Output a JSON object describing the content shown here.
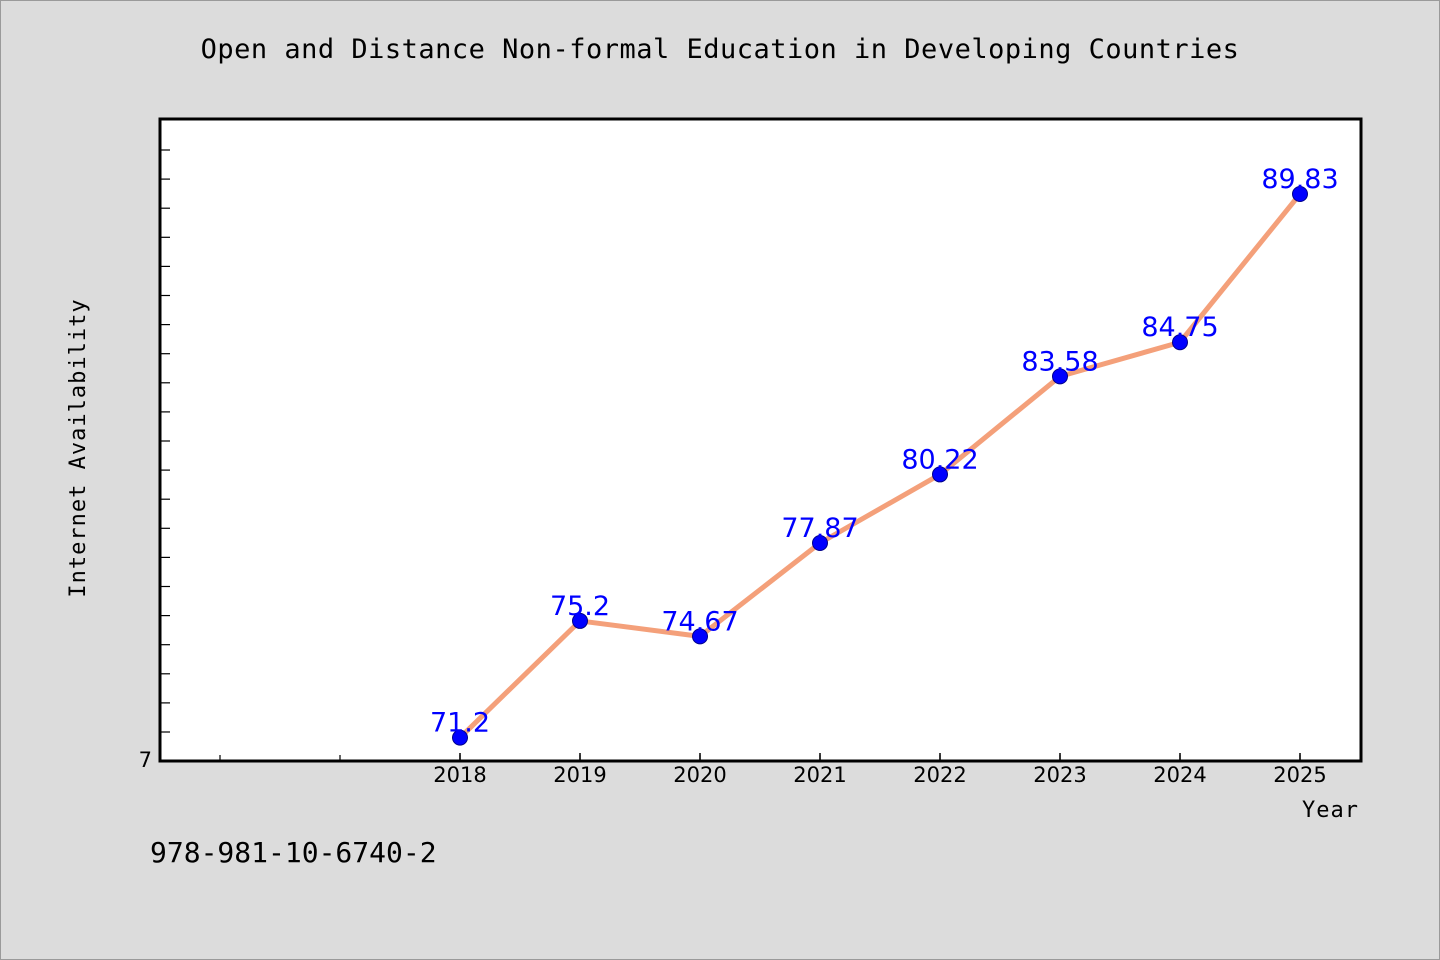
{
  "page": {
    "title": "Open and Distance Non-formal Education in Developing Countries",
    "footer_code": "978-981-10-6740-2"
  },
  "chart_data": {
    "type": "line",
    "title": "Open and Distance Non-formal Education in Developing Countries",
    "xlabel": "Year",
    "ylabel": "Internet Availability",
    "categories": [
      "2018",
      "2019",
      "2020",
      "2021",
      "2022",
      "2023",
      "2024",
      "2025"
    ],
    "series": [
      {
        "values": [
          71.2,
          75.2,
          74.67,
          77.87,
          80.22,
          83.58,
          84.75,
          89.83
        ],
        "data_labels": [
          "71.2",
          "75.2",
          "74.67",
          "77.87",
          "80.22",
          "83.58",
          "84.75",
          "89.83"
        ],
        "line_color": "#f4a07a",
        "marker_color": "#0000ff",
        "label_color": "#0000ff"
      }
    ],
    "y_tick_labels": [
      "7"
    ],
    "ylim": [
      70.4,
      92.4
    ],
    "grid": false,
    "legend": "none",
    "colors": {
      "background": "#dcdcdc",
      "plot_background": "#ffffff",
      "axis": "#000000"
    }
  }
}
